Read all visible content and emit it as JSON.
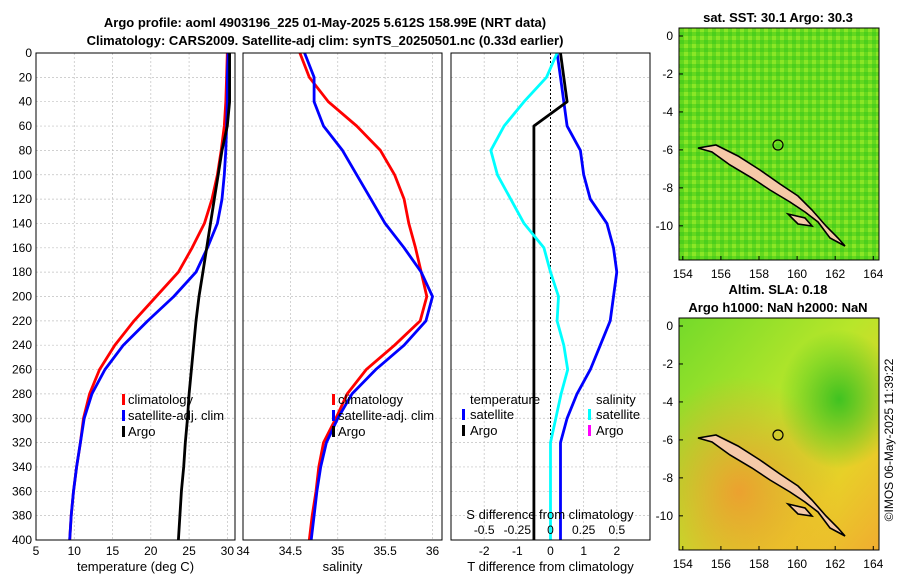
{
  "titles": {
    "line1": "Argo profile: aoml 4903196_225 01-May-2025 5.612S 158.99E (NRT data)",
    "line2": "Climatology: CARS2009. Satellite-adj clim: synTS_20250501.nc (0.33d earlier)",
    "sst": "sat. SST: 30.1 Argo: 30.3",
    "sla": "Altim. SLA: 0.18",
    "h": "Argo h1000: NaN h2000: NaN",
    "credit": "©IMOS 06-May-2025 11:39:22"
  },
  "colors": {
    "climatology": "#ff0000",
    "satellite": "#0000ff",
    "argo": "#000000",
    "sat_s": "#00ffff",
    "argo_s": "#ff00ff",
    "land": "#f5c9a8"
  },
  "chart_data": [
    {
      "id": "temperature",
      "type": "line",
      "xlabel": "temperature (deg C)",
      "xlim": [
        5,
        31
      ],
      "ylim": [
        0,
        400
      ],
      "xticks": [
        "5",
        "10",
        "15",
        "20",
        "25",
        "30"
      ],
      "yticks": [
        "0",
        "20",
        "40",
        "60",
        "80",
        "100",
        "120",
        "140",
        "160",
        "180",
        "200",
        "220",
        "240",
        "260",
        "280",
        "300",
        "320",
        "340",
        "360",
        "380",
        "400"
      ],
      "depth": [
        0,
        20,
        40,
        60,
        80,
        100,
        120,
        140,
        160,
        180,
        200,
        220,
        240,
        260,
        280,
        300,
        320,
        340,
        360,
        380,
        400
      ],
      "series": [
        {
          "name": "climatology",
          "values": [
            30.0,
            29.9,
            29.8,
            29.6,
            29.2,
            28.7,
            28.0,
            27.0,
            25.4,
            23.6,
            20.7,
            17.8,
            15.3,
            13.3,
            12.0,
            11.2,
            10.8,
            10.3,
            9.9,
            9.6,
            9.4
          ]
        },
        {
          "name": "satellite-adj. clim",
          "values": [
            30.1,
            30.0,
            30.0,
            29.9,
            29.8,
            29.6,
            29.3,
            28.7,
            27.4,
            25.9,
            23.0,
            19.6,
            16.4,
            14.0,
            12.3,
            11.3,
            10.8,
            10.3,
            9.9,
            9.6,
            9.4
          ]
        },
        {
          "name": "Argo",
          "values": [
            30.3,
            30.3,
            30.3,
            30.0,
            29.3,
            28.8,
            28.3,
            27.8,
            27.3,
            26.8,
            26.3,
            25.9,
            25.6,
            25.3,
            25.0,
            24.8,
            24.5,
            24.3,
            24.0,
            23.8,
            23.6
          ]
        }
      ],
      "legend": [
        "climatology",
        "satellite-adj. clim",
        "Argo"
      ]
    },
    {
      "id": "salinity",
      "type": "line",
      "xlabel": "salinity",
      "xlim": [
        34.0,
        36.1
      ],
      "ylim": [
        0,
        400
      ],
      "xticks": [
        "34",
        "34.5",
        "35",
        "35.5",
        "36"
      ],
      "depth": [
        0,
        20,
        40,
        60,
        80,
        100,
        120,
        140,
        160,
        180,
        200,
        220,
        240,
        260,
        280,
        300,
        320,
        340,
        360,
        380,
        400
      ],
      "series": [
        {
          "name": "climatology",
          "values": [
            34.6,
            34.7,
            34.9,
            35.2,
            35.45,
            35.6,
            35.7,
            35.75,
            35.82,
            35.88,
            35.94,
            35.87,
            35.6,
            35.3,
            35.1,
            34.98,
            34.85,
            34.8,
            34.77,
            34.73,
            34.7
          ]
        },
        {
          "name": "satellite-adj. clim",
          "values": [
            34.65,
            34.75,
            34.75,
            34.85,
            35.05,
            35.2,
            35.35,
            35.5,
            35.7,
            35.88,
            36.0,
            35.93,
            35.7,
            35.4,
            35.15,
            35.0,
            34.88,
            34.82,
            34.78,
            34.75,
            34.72
          ]
        }
      ],
      "legend": [
        "climatology",
        "satellite-adj. clim",
        "Argo"
      ]
    },
    {
      "id": "difference",
      "type": "line",
      "xlabel": "T difference from climatology",
      "xlim": [
        -3,
        3
      ],
      "ylim": [
        0,
        400
      ],
      "xticks": [
        "-2",
        "-1",
        "0",
        "1",
        "2"
      ],
      "s_axis_label": "S difference from climatology",
      "s_ticks": [
        "-0.5",
        "-0.25",
        "0",
        "0.25",
        "0.5"
      ],
      "depth": [
        0,
        20,
        40,
        60,
        80,
        100,
        120,
        140,
        160,
        180,
        200,
        220,
        240,
        260,
        280,
        300,
        320,
        340,
        360,
        380,
        400
      ],
      "series": [
        {
          "name": "temperature satellite",
          "values": [
            0.2,
            0.3,
            0.4,
            0.5,
            0.9,
            1.0,
            1.2,
            1.7,
            1.9,
            2.0,
            1.9,
            1.8,
            1.5,
            1.2,
            0.8,
            0.5,
            0.3,
            0.3,
            0.3,
            0.3,
            0.3
          ]
        },
        {
          "name": "temperature Argo",
          "values": [
            0.3,
            0.4,
            0.5,
            -0.5,
            -0.5,
            -0.5,
            -0.5,
            -0.5,
            -0.5,
            -0.5,
            -0.5,
            -0.5,
            -0.5,
            -0.5,
            -0.5,
            -0.5,
            -0.5,
            -0.5,
            -0.5,
            -0.5,
            -0.5
          ]
        },
        {
          "name": "salinity satellite",
          "values": [
            0.05,
            -0.03,
            -0.2,
            -0.35,
            -0.45,
            -0.4,
            -0.3,
            -0.2,
            -0.05,
            0,
            0.06,
            0.05,
            0.1,
            0.13,
            0.08,
            0.04,
            0,
            0,
            0,
            0,
            0
          ]
        }
      ],
      "legend_t": "temperature",
      "legend_s": "salinity",
      "legend": [
        "satellite",
        "Argo",
        "satellite",
        "Argo"
      ]
    }
  ],
  "maps": {
    "xticks": [
      "154",
      "156",
      "158",
      "160",
      "162",
      "164"
    ],
    "sst_yticks": [
      "0",
      "-2",
      "-4",
      "-6",
      "-8",
      "-10"
    ],
    "sla_yticks": [
      "0",
      "-2",
      "-4",
      "-6",
      "-8",
      "-10"
    ]
  }
}
